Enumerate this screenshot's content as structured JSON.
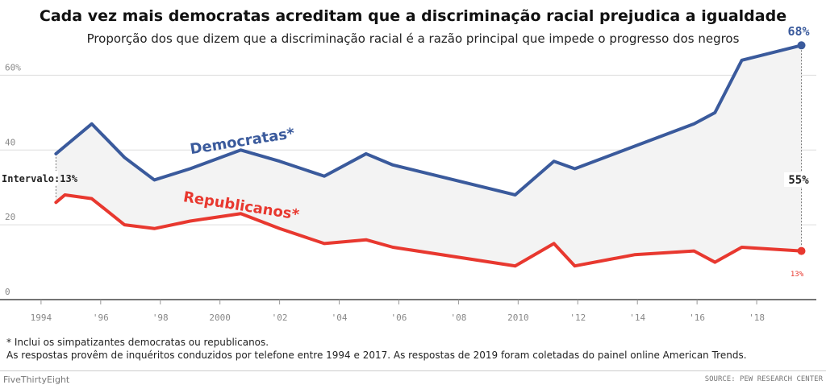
{
  "title": "Cada vez mais democratas acreditam que a discriminação racial prejudica a igualdade",
  "subtitle": "Proporção dos que dizem que a discriminação racial é a razão principal que impede o progresso dos negros",
  "footnote1": "* Inclui os simpatizantes democratas ou republicanos.",
  "footnote2": "As respostas provêm de inquéritos conduzidos por telefone entre 1994 e 2017. As respostas de 2019 foram coletadas do painel online American Trends.",
  "brand": "FiveThirtyEight",
  "source": "SOURCE: PEW RESEARCH CENTER",
  "chart_data": {
    "type": "line",
    "title": "Cada vez mais democratas acreditam que a discriminação racial prejudica a igualdade",
    "subtitle": "Proporção dos que dizem que a discriminação racial é a razão principal que impede o progresso dos negros",
    "xlim": [
      1993.8,
      2020.0
    ],
    "ylim": [
      0,
      70
    ],
    "y_ticks": [
      {
        "v": 0,
        "label": "0"
      },
      {
        "v": 20,
        "label": "20"
      },
      {
        "v": 40,
        "label": "40"
      },
      {
        "v": 60,
        "label": "60%"
      }
    ],
    "x_ticks": [
      {
        "v": 1994,
        "label": "1994"
      },
      {
        "v": 1996,
        "label": "'96"
      },
      {
        "v": 1998,
        "label": "'98"
      },
      {
        "v": 2000,
        "label": "2000"
      },
      {
        "v": 2002,
        "label": "'02"
      },
      {
        "v": 2004,
        "label": "'04"
      },
      {
        "v": 2006,
        "label": "'06"
      },
      {
        "v": 2008,
        "label": "'08"
      },
      {
        "v": 2010,
        "label": "2010"
      },
      {
        "v": 2012,
        "label": "'12"
      },
      {
        "v": 2014,
        "label": "'14"
      },
      {
        "v": 2016,
        "label": "'16"
      },
      {
        "v": 2018,
        "label": "'18"
      }
    ],
    "grid": true,
    "series": [
      {
        "name": "Democratas*",
        "color": "#3a5a9c",
        "x": [
          1994.5,
          1994.8,
          1995.7,
          1996.8,
          1997.8,
          1999.0,
          2000.7,
          2002.0,
          2003.5,
          2004.9,
          2005.8,
          2009.9,
          2011.2,
          2011.9,
          2013.9,
          2015.9,
          2016.6,
          2017.5,
          2019.5
        ],
        "y": [
          39,
          41,
          47,
          38,
          32,
          35,
          40,
          37,
          33,
          39,
          36,
          28,
          37,
          35,
          41,
          47,
          50,
          64,
          68
        ]
      },
      {
        "name": "Republicanos*",
        "color": "#e8382f",
        "x": [
          1994.5,
          1994.8,
          1995.7,
          1996.8,
          1997.8,
          1999.0,
          2000.7,
          2002.0,
          2003.5,
          2004.9,
          2005.8,
          2009.9,
          2011.2,
          2011.9,
          2013.9,
          2015.9,
          2016.6,
          2017.5,
          2019.5
        ],
        "y": [
          26,
          28,
          27,
          20,
          19,
          21,
          23,
          19,
          15,
          16,
          14,
          9,
          15,
          9,
          12,
          13,
          10,
          14,
          13
        ]
      }
    ],
    "annotations": {
      "start_gap": "Intervalo:13%",
      "end_gap": "55%",
      "dem_end": "68%",
      "rep_end": "13%"
    }
  }
}
